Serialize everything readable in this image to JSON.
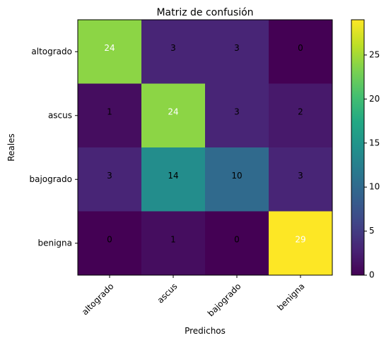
{
  "chart_data": {
    "type": "heatmap",
    "title": "Matriz de confusión",
    "xlabel": "Predichos",
    "ylabel": "Reales",
    "x_categories": [
      "altogrado",
      "ascus",
      "bajogrado",
      "benigna"
    ],
    "y_categories": [
      "altogrado",
      "ascus",
      "bajogrado",
      "benigna"
    ],
    "matrix": [
      [
        24,
        3,
        3,
        0
      ],
      [
        1,
        24,
        3,
        2
      ],
      [
        3,
        14,
        10,
        3
      ],
      [
        0,
        1,
        0,
        29
      ]
    ],
    "colormap": "viridis",
    "color_range": [
      0,
      29
    ],
    "colorbar_ticks": [
      0,
      5,
      10,
      15,
      20,
      25
    ],
    "grid": false,
    "x_tick_rotation": 45
  }
}
